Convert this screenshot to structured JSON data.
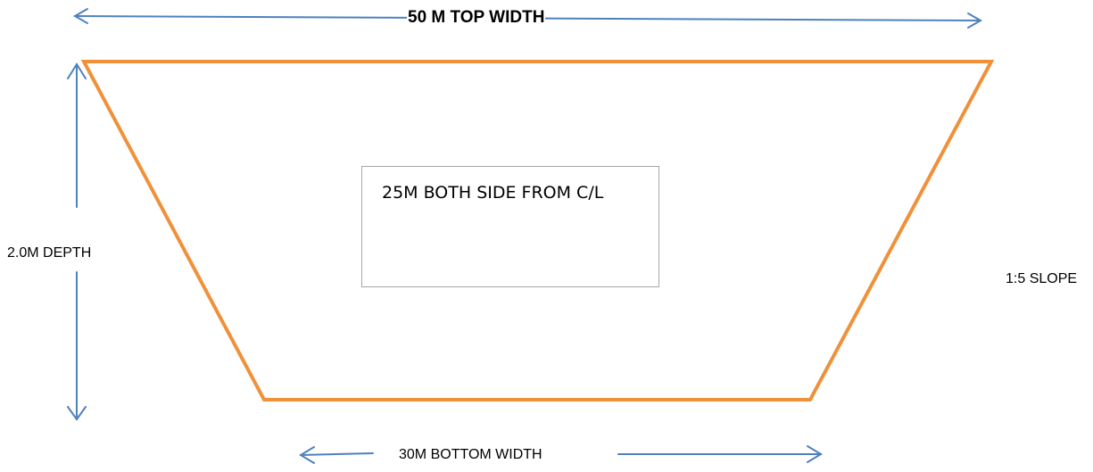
{
  "labels": {
    "top_width": "50 M TOP WIDTH",
    "depth": "2.0M DEPTH",
    "slope": "1:5 SLOPE",
    "bottom_width": "30M BOTTOM WIDTH",
    "note": "25M BOTH SIDE FROM C/L"
  },
  "colors": {
    "outline": "#f0913a",
    "arrow": "#4f81bd",
    "note_border": "#a6a6a6"
  }
}
